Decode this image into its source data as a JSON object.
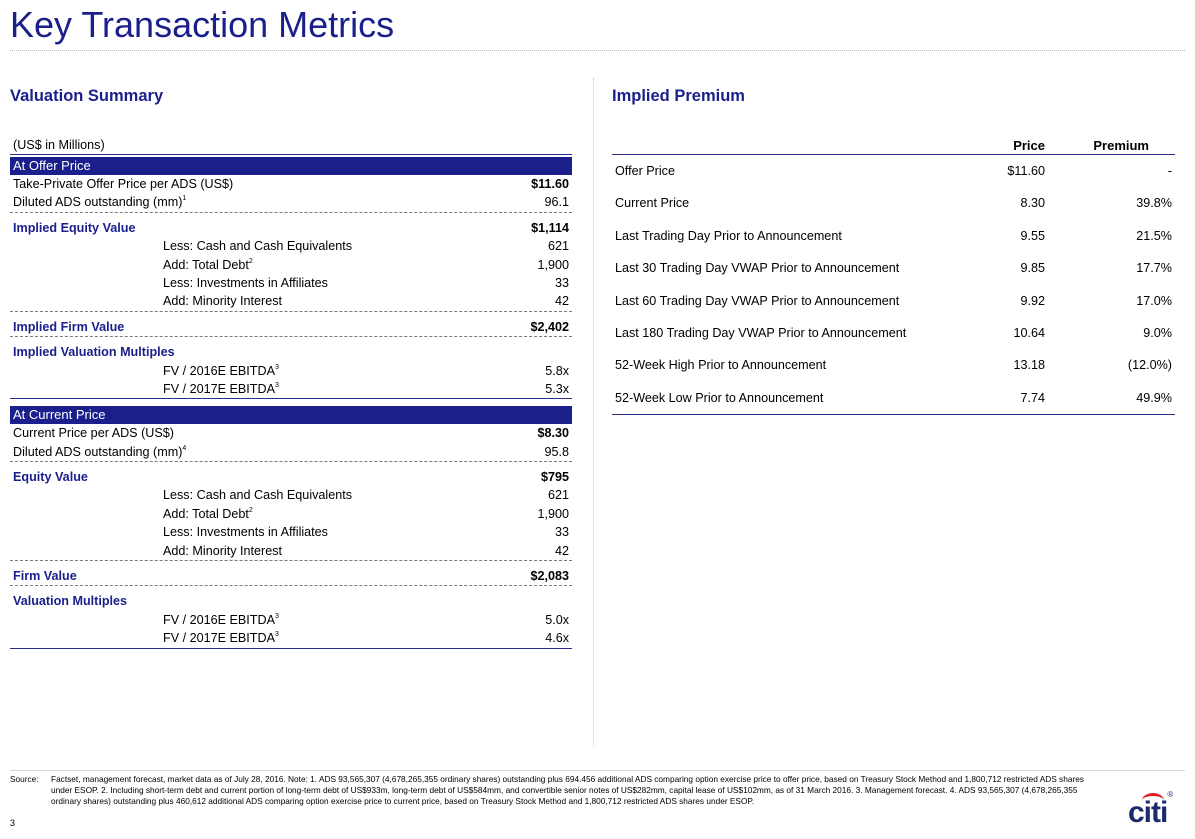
{
  "page": {
    "title": "Key Transaction Metrics",
    "page_number": "3"
  },
  "left": {
    "heading": "Valuation Summary",
    "units": "(US$ in Millions)",
    "offer": {
      "band": "At Offer Price",
      "price_label": "Take-Private Offer Price per ADS (US$)",
      "price_value": "$11.60",
      "ads_label": "Diluted ADS outstanding  (mm)",
      "ads_sup": "1",
      "ads_value": "96.1",
      "equity_label": "Implied Equity Value",
      "equity_value": "$1,114",
      "cash_label": "Less: Cash and Cash Equivalents",
      "cash_value": "621",
      "debt_label": "Add: Total Debt",
      "debt_sup": "2",
      "debt_value": "1,900",
      "inv_label": "Less: Investments in Affiliates",
      "inv_value": "33",
      "mi_label": "Add: Minority Interest",
      "mi_value": "42",
      "firm_label": "Implied Firm Value",
      "firm_value": "$2,402",
      "mult_label": "Implied Valuation Multiples",
      "fv16_label": "FV / 2016E EBITDA",
      "fv16_sup": "3",
      "fv16_value": "5.8x",
      "fv17_label": "FV / 2017E EBITDA",
      "fv17_sup": "3",
      "fv17_value": "5.3x"
    },
    "current": {
      "band": "At Current Price",
      "price_label": "Current Price per ADS (US$)",
      "price_value": "$8.30",
      "ads_label": "Diluted ADS outstanding  (mm)",
      "ads_sup": "4",
      "ads_value": "95.8",
      "equity_label": "Equity Value",
      "equity_value": "$795",
      "cash_label": "Less: Cash and Cash Equivalents",
      "cash_value": "621",
      "debt_label": "Add: Total Debt",
      "debt_sup": "2",
      "debt_value": "1,900",
      "inv_label": "Less: Investments in Affiliates",
      "inv_value": "33",
      "mi_label": "Add: Minority Interest",
      "mi_value": "42",
      "firm_label": "Firm Value",
      "firm_value": "$2,083",
      "mult_label": "Valuation Multiples",
      "fv16_label": "FV / 2016E EBITDA",
      "fv16_sup": "3",
      "fv16_value": "5.0x",
      "fv17_label": "FV / 2017E EBITDA",
      "fv17_sup": "3",
      "fv17_value": "4.6x"
    }
  },
  "right": {
    "heading": "Implied Premium",
    "col_price": "Price",
    "col_premium": "Premium",
    "rows": [
      {
        "label": "Offer Price",
        "price": "$11.60",
        "premium": "-"
      },
      {
        "label": "Current Price",
        "price": "8.30",
        "premium": "39.8%"
      },
      {
        "label": "Last Trading Day Prior to Announcement",
        "price": "9.55",
        "premium": "21.5%"
      },
      {
        "label": "Last 30 Trading Day VWAP Prior to Announcement",
        "price": "9.85",
        "premium": "17.7%"
      },
      {
        "label": "Last 60 Trading Day VWAP Prior to Announcement",
        "price": "9.92",
        "premium": "17.0%"
      },
      {
        "label": "Last 180 Trading Day VWAP Prior to Announcement",
        "price": "10.64",
        "premium": "9.0%"
      },
      {
        "label": "52-Week High Prior to Announcement",
        "price": "13.18",
        "premium": "(12.0%)"
      },
      {
        "label": "52-Week Low  Prior to Announcement",
        "price": "7.74",
        "premium": "49.9%"
      }
    ]
  },
  "footnote": {
    "source_label": "Source:",
    "text": "Factset, management forecast, market data as of July 28, 2016. Note: 1. ADS 93,565,307 (4,678,265,355 ordinary shares) outstanding plus 694.456 additional ADS comparing option exercise price to offer price, based on Treasury Stock Method and 1,800,712 restricted ADS shares under ESOP. 2. Including short-term debt and current portion of long-term debt of US$933m, long-term debt of US$584mm, and convertible senior notes of US$282mm, capital lease of US$102mm, as of 31 March 2016. 3. Management forecast. 4. ADS 93,565,307 (4,678,265,355 ordinary shares) outstanding plus 460,612 additional ADS comparing option exercise price to current price, based on Treasury Stock Method and 1,800,712 restricted ADS shares under ESOP."
  },
  "logo": {
    "text": "citi",
    "registered": "®"
  },
  "colors": {
    "brand_navy": "#1a1f8c",
    "logo_red": "#e41b23"
  }
}
